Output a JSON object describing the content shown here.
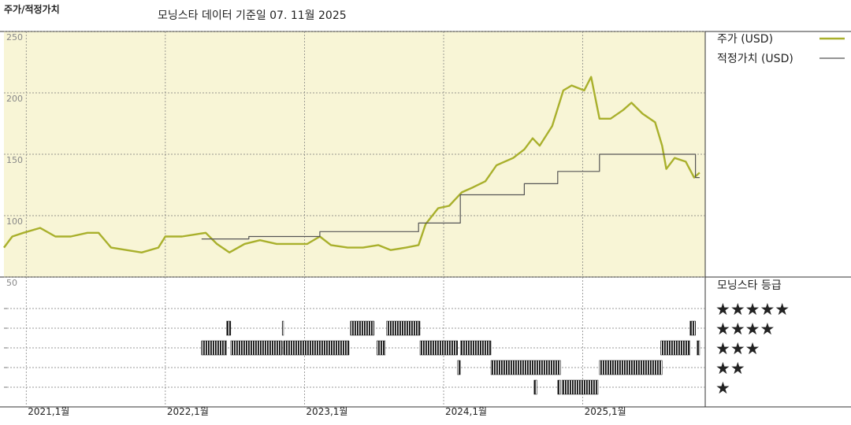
{
  "header": {
    "title": "주가/적정가치",
    "subtitle": "모닝스타 데이터 기준일 07. 11월 2025"
  },
  "chart_data": [
    {
      "type": "line",
      "grid": true,
      "xlim": [
        2020.84,
        2025.88
      ],
      "xticks": [
        {
          "value": 2021,
          "label": "2021,1월"
        },
        {
          "value": 2022,
          "label": "2022,1월"
        },
        {
          "value": 2023,
          "label": "2023,1월"
        },
        {
          "value": 2024,
          "label": "2024,1월"
        },
        {
          "value": 2025,
          "label": "2025,1월"
        }
      ],
      "ylim": [
        50,
        250
      ],
      "yticks": [
        50,
        100,
        150,
        200,
        250
      ],
      "series": [
        {
          "name": "주가 (USD)",
          "color": "#a9b02c",
          "x": [
            2020.84,
            2020.9,
            2020.98,
            2021.1,
            2021.21,
            2021.32,
            2021.44,
            2021.52,
            2021.61,
            2021.72,
            2021.83,
            2021.95,
            2022.0,
            2022.12,
            2022.23,
            2022.29,
            2022.37,
            2022.46,
            2022.57,
            2022.68,
            2022.8,
            2022.91,
            2023.02,
            2023.11,
            2023.19,
            2023.31,
            2023.42,
            2023.53,
            2023.62,
            2023.73,
            2023.82,
            2023.87,
            2023.96,
            2024.04,
            2024.13,
            2024.21,
            2024.3,
            2024.38,
            2024.5,
            2024.58,
            2024.64,
            2024.69,
            2024.78,
            2024.86,
            2024.92,
            2025.01,
            2025.06,
            2025.12,
            2025.2,
            2025.29,
            2025.35,
            2025.43,
            2025.52,
            2025.57,
            2025.6,
            2025.66,
            2025.74,
            2025.8,
            2025.84
          ],
          "values": [
            74,
            83,
            86,
            90,
            83,
            83,
            86,
            86,
            74,
            72,
            70,
            74,
            83,
            83,
            85,
            86,
            77,
            70,
            77,
            80,
            77,
            77,
            77,
            83,
            76,
            74,
            74,
            76,
            72,
            74,
            76,
            93,
            106,
            108,
            119,
            123,
            128,
            141,
            147,
            154,
            163,
            157,
            173,
            202,
            206,
            202,
            213,
            179,
            179,
            186,
            192,
            183,
            176,
            157,
            138,
            147,
            144,
            131,
            135
          ]
        },
        {
          "name": "적정가치 (USD)",
          "color": "#555555",
          "step": "post",
          "x": [
            2022.26,
            2022.6,
            2023.11,
            2023.82,
            2024.12,
            2024.58,
            2024.82,
            2025.12,
            2025.81,
            2025.84
          ],
          "values": [
            81,
            83,
            87,
            94,
            117,
            126,
            136,
            150,
            131,
            131
          ]
        }
      ]
    },
    {
      "type": "rating",
      "title": "모닝스타 등급",
      "categories": [
        "★★★★★",
        "★★★★",
        "★★★",
        "★★",
        "★"
      ],
      "category_values": [
        5,
        4,
        3,
        2,
        1
      ],
      "periods": [
        {
          "start": 2022.44,
          "end": 2022.47,
          "stars": 4
        },
        {
          "start": 2022.84,
          "end": 2022.85,
          "stars": 4
        },
        {
          "start": 2023.33,
          "end": 2023.5,
          "stars": 4
        },
        {
          "start": 2023.59,
          "end": 2023.83,
          "stars": 4
        },
        {
          "start": 2025.77,
          "end": 2025.81,
          "stars": 4
        },
        {
          "start": 2022.26,
          "end": 2022.44,
          "stars": 3
        },
        {
          "start": 2022.47,
          "end": 2022.84,
          "stars": 3
        },
        {
          "start": 2022.85,
          "end": 2023.32,
          "stars": 3
        },
        {
          "start": 2023.52,
          "end": 2023.58,
          "stars": 3
        },
        {
          "start": 2023.83,
          "end": 2024.1,
          "stars": 3
        },
        {
          "start": 2024.12,
          "end": 2024.34,
          "stars": 3
        },
        {
          "start": 2025.56,
          "end": 2025.77,
          "stars": 3
        },
        {
          "start": 2025.82,
          "end": 2025.84,
          "stars": 3
        },
        {
          "start": 2024.1,
          "end": 2024.12,
          "stars": 2
        },
        {
          "start": 2024.34,
          "end": 2024.84,
          "stars": 2
        },
        {
          "start": 2025.12,
          "end": 2025.57,
          "stars": 2
        },
        {
          "start": 2024.65,
          "end": 2024.67,
          "stars": 1
        },
        {
          "start": 2024.82,
          "end": 2024.84,
          "stars": 1
        },
        {
          "start": 2024.85,
          "end": 2025.11,
          "stars": 1
        }
      ]
    }
  ]
}
